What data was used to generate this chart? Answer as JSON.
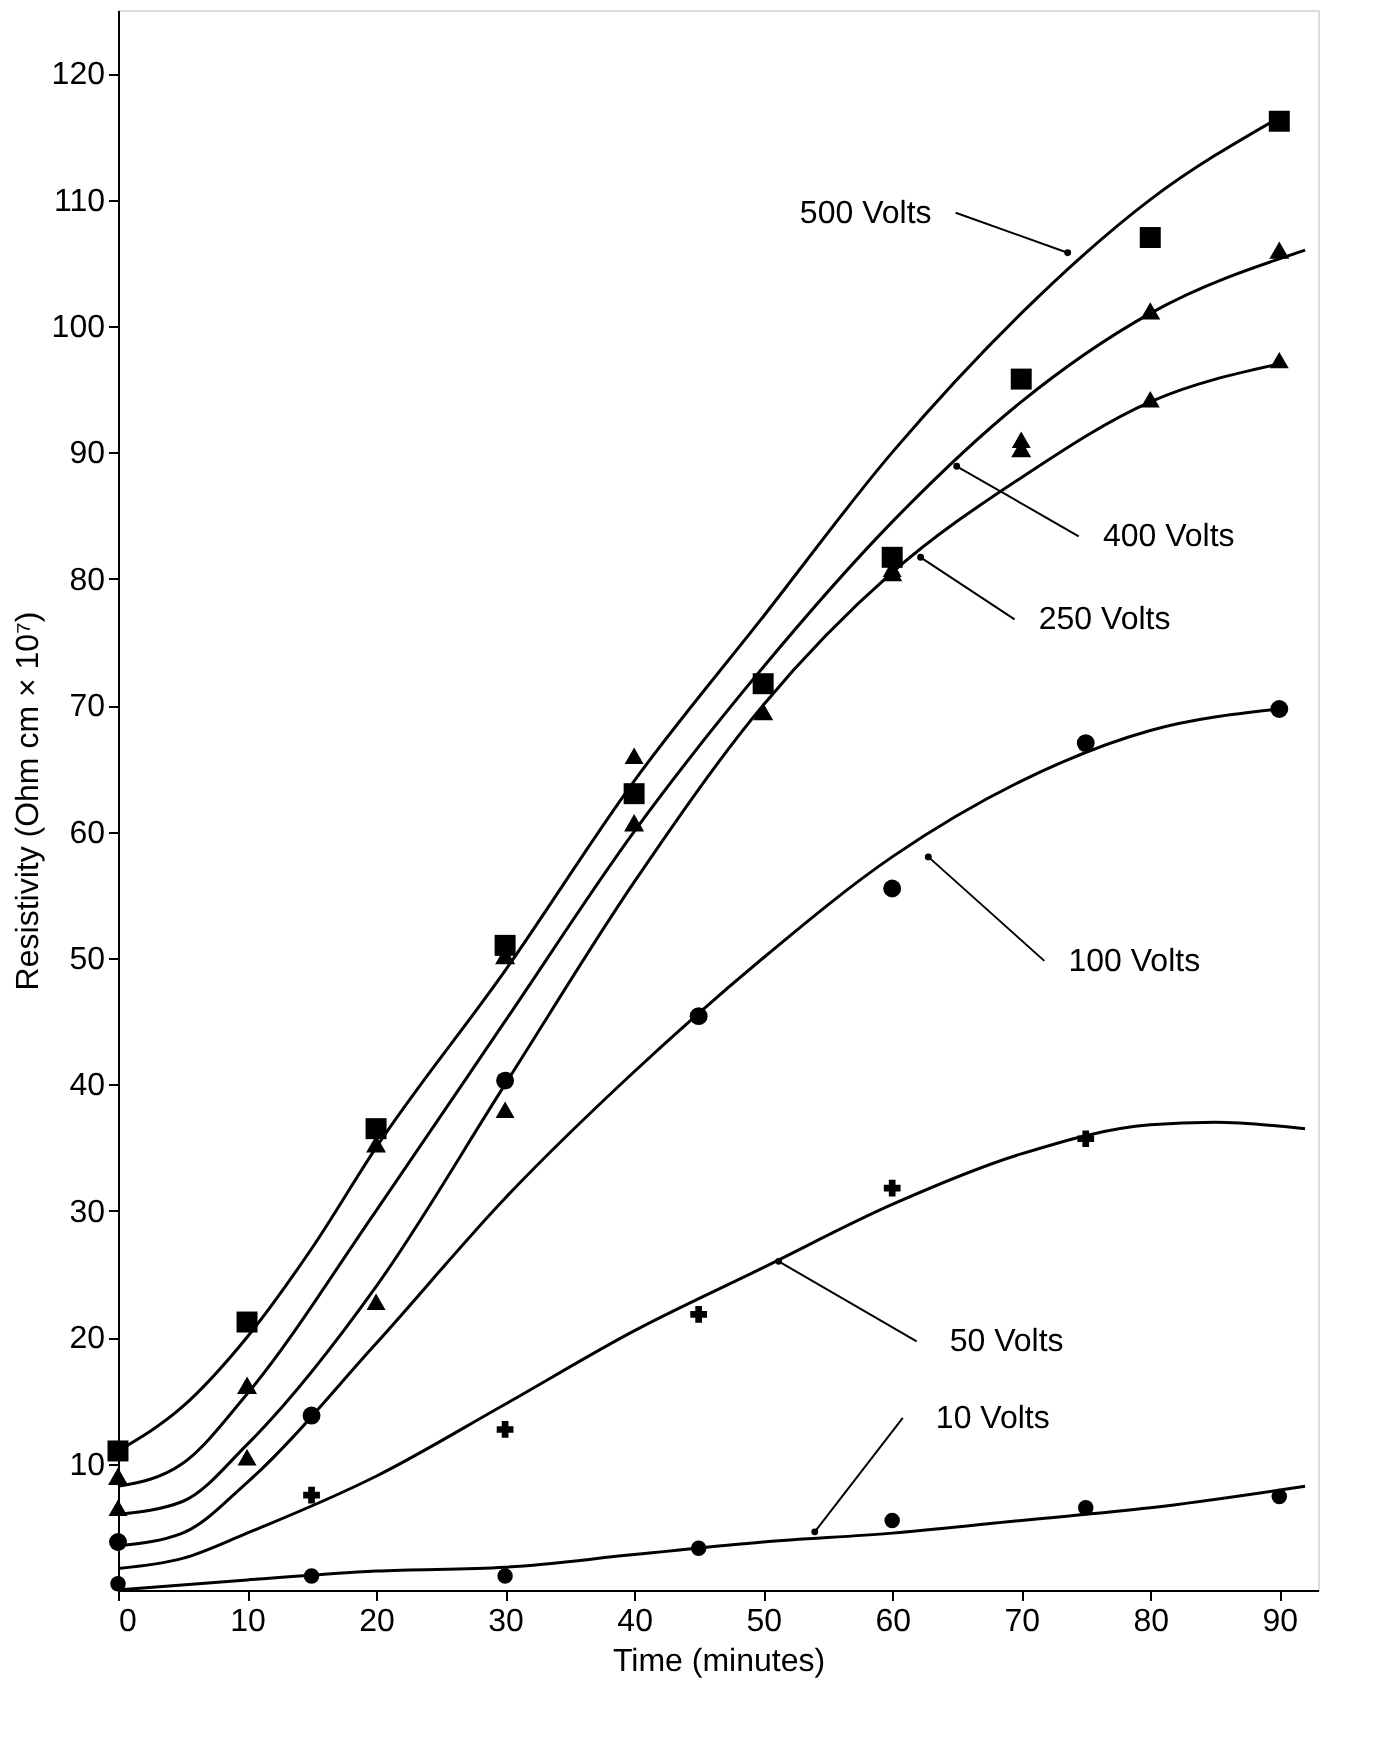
{
  "chart_data": {
    "type": "scatter",
    "xlabel": "Time (minutes)",
    "ylabel": "Resistivity (Ohm cm × 10⁷)",
    "xlim": [
      0,
      93
    ],
    "ylim": [
      0,
      125
    ],
    "xticks": [
      0,
      10,
      20,
      30,
      40,
      50,
      60,
      70,
      80,
      90
    ],
    "yticks": [
      10,
      20,
      30,
      40,
      50,
      60,
      70,
      80,
      90,
      100,
      110,
      120
    ],
    "grid": false,
    "series": [
      {
        "marker": "square",
        "color": "#000000",
        "x": [
          0,
          10,
          20,
          30,
          40,
          50,
          60,
          70,
          80,
          90
        ],
        "values": [
          11,
          21.2,
          36.5,
          51,
          63,
          71.7,
          81.7,
          95.8,
          107,
          116.2
        ]
      },
      {
        "marker": "triangle",
        "color": "#000000",
        "x": [
          0,
          10,
          20,
          30,
          40,
          50,
          60,
          70,
          80,
          90
        ],
        "values": [
          9,
          16.2,
          35.3,
          50.2,
          60.7,
          69.5,
          80.5,
          90.3,
          101.2,
          106
        ]
      },
      {
        "marker": "triangle",
        "color": "#000000",
        "x": [
          0,
          10,
          20,
          30,
          40,
          60,
          70,
          80,
          90
        ],
        "values": [
          6.5,
          10.5,
          22.8,
          38,
          66,
          80.8,
          91,
          94.2,
          97.3
        ]
      },
      {
        "marker": "circle",
        "color": "#000000",
        "x": [
          0,
          15,
          30,
          45,
          60,
          75,
          90
        ],
        "values": [
          3.8,
          13.8,
          40.3,
          45.4,
          55.5,
          67,
          69.7
        ]
      },
      {
        "marker": "cross",
        "color": "#000000",
        "x": [
          15,
          30,
          45,
          60,
          75
        ],
        "values": [
          7.5,
          12.7,
          21.8,
          31.8,
          35.7
        ]
      },
      {
        "marker": "circle",
        "color": "#000000",
        "x": [
          0,
          15,
          30,
          45,
          60,
          75,
          90
        ],
        "values": [
          0.5,
          1.1,
          1.1,
          3.3,
          5.5,
          6.5,
          7.4
        ]
      },
      {
        "type": "line",
        "color": "#000000",
        "x": [
          0,
          5,
          10,
          15,
          20,
          30,
          40,
          50,
          60,
          70,
          80,
          90
        ],
        "values": [
          11,
          14.5,
          20,
          27,
          35,
          49,
          64,
          77,
          90,
          101,
          110,
          116.5
        ]
      },
      {
        "type": "line",
        "color": "#000000",
        "x": [
          0,
          5,
          10,
          20,
          30,
          40,
          50,
          60,
          70,
          80,
          92
        ],
        "values": [
          8.2,
          10,
          15.5,
          30,
          45,
          60,
          73,
          84.5,
          94,
          101,
          106
        ]
      },
      {
        "type": "line",
        "color": "#000000",
        "x": [
          0,
          5,
          10,
          20,
          30,
          40,
          50,
          60,
          70,
          80,
          90
        ],
        "values": [
          6,
          7,
          11.5,
          24,
          40,
          56,
          70,
          80.5,
          88,
          94,
          97
        ]
      },
      {
        "type": "line",
        "color": "#000000",
        "x": [
          0,
          5,
          10,
          20,
          30,
          40,
          50,
          60,
          70,
          80,
          90
        ],
        "values": [
          3.5,
          4.5,
          8.5,
          19.5,
          31,
          41,
          50,
          58,
          64,
          68,
          69.7
        ]
      },
      {
        "type": "line",
        "color": "#000000",
        "x": [
          0,
          5,
          10,
          20,
          30,
          40,
          50,
          60,
          70,
          80,
          85,
          92
        ],
        "values": [
          1.7,
          2.5,
          4.5,
          9,
          14.7,
          20.5,
          25.5,
          30.5,
          34.5,
          36.8,
          37,
          36.5
        ]
      },
      {
        "type": "line",
        "color": "#000000",
        "x": [
          0,
          10,
          20,
          30,
          40,
          50,
          60,
          70,
          80,
          92
        ],
        "values": [
          0,
          0.8,
          1.5,
          1.8,
          2.8,
          3.8,
          4.5,
          5.5,
          6.5,
          8.2
        ]
      }
    ],
    "annotations": [
      {
        "text": "500 Volts",
        "x": 73.6,
        "y": 105.8
      },
      {
        "text": "400 Volts",
        "x": 65,
        "y": 88.9
      },
      {
        "text": "250 Volts",
        "x": 62.2,
        "y": 81.7
      },
      {
        "text": "100 Volts",
        "x": 62.8,
        "y": 58
      },
      {
        "text": "50 Volts",
        "x": 51.2,
        "y": 26
      },
      {
        "text": "10 Volts",
        "x": 54,
        "y": 4.6
      }
    ]
  }
}
